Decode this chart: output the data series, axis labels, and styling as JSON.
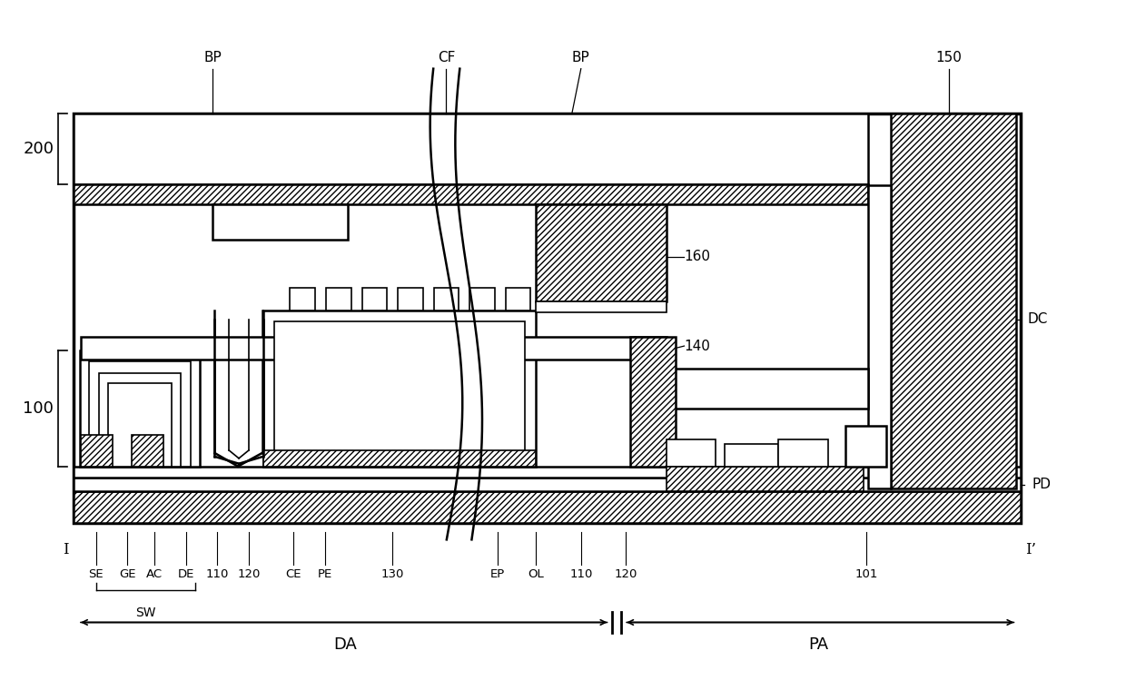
{
  "bg_color": "#ffffff",
  "lc": "#000000",
  "fig_w": 12.4,
  "fig_h": 7.71,
  "labels": {
    "BP_left": "BP",
    "CF": "CF",
    "BP_right": "BP",
    "n150": "150",
    "n200": "200",
    "n100": "100",
    "n160": "160",
    "n140": "140",
    "DC": "DC",
    "PD": "PD",
    "I": "I",
    "Ip": "I’",
    "SE": "SE",
    "GE": "GE",
    "AC": "AC",
    "DE": "DE",
    "n110a": "110",
    "n120a": "120",
    "CE": "CE",
    "PE": "PE",
    "n130": "130",
    "EP": "EP",
    "OL": "OL",
    "n110b": "110",
    "n120b": "120",
    "n101": "101",
    "SW": "SW",
    "DA": "DA",
    "PA": "PA"
  }
}
